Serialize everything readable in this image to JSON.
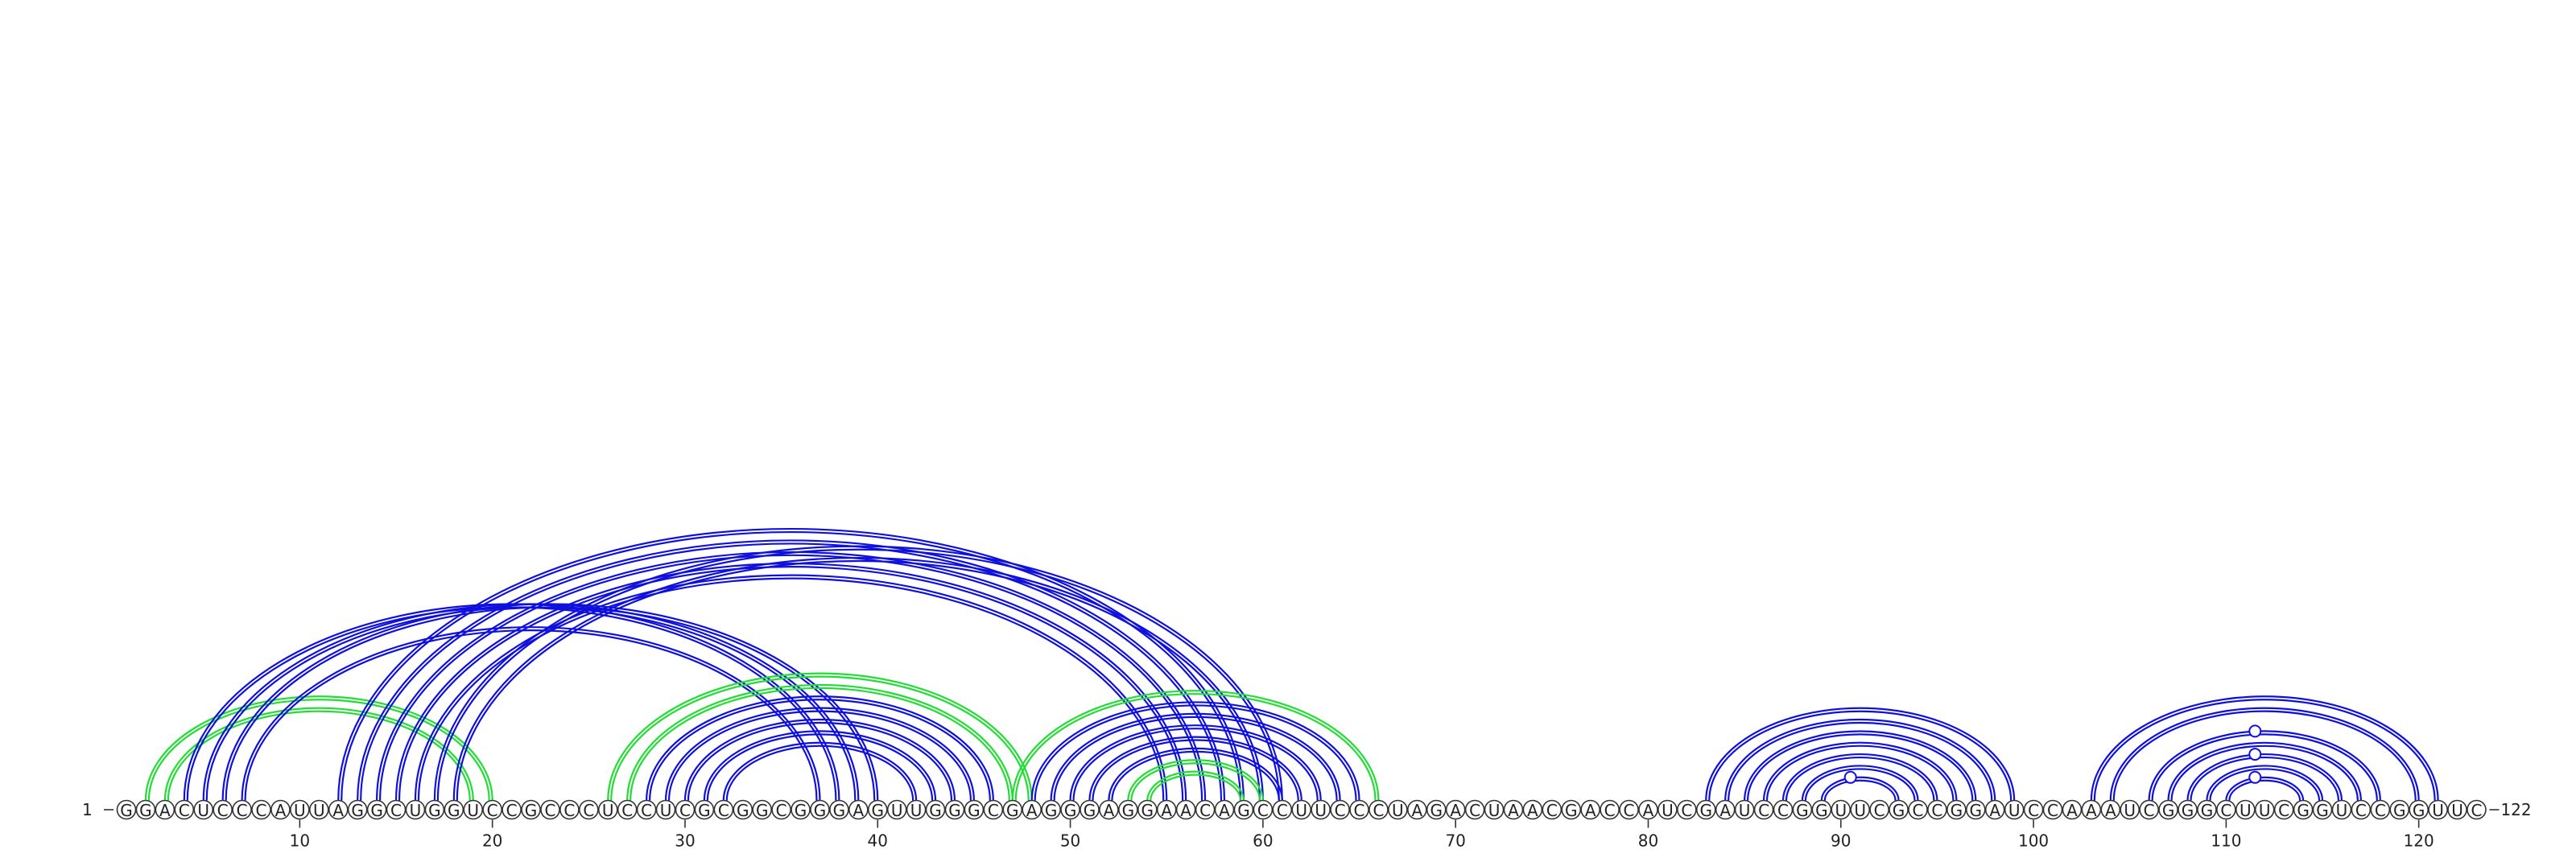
{
  "chart_data": {
    "type": "arc-diagram",
    "sequence": "GGACUCCCAUUAGGCUGGUCCGCCCUCCUCGCGGCGGGAGUUGGGCGAGGGAGGAACAGCCUUCCCUAGACUAACGACCAUCGAUCCGGUUCGCCGGAUCCAAAUCGGGCUUCGGUCCGGUUC",
    "length": 122,
    "start_label": "1",
    "end_label": "122",
    "ticks": [
      10,
      20,
      30,
      40,
      50,
      60,
      70,
      80,
      90,
      100,
      110,
      120
    ],
    "colors": {
      "blue": "#1010dd",
      "green": "#22dd33"
    },
    "arcs": [
      {
        "i": 2,
        "j": 20,
        "color": "green"
      },
      {
        "i": 3,
        "j": 19,
        "color": "green"
      },
      {
        "i": 4,
        "j": 38,
        "color": "blue"
      },
      {
        "i": 5,
        "j": 39,
        "color": "blue"
      },
      {
        "i": 6,
        "j": 40,
        "color": "blue"
      },
      {
        "i": 7,
        "j": 37,
        "color": "blue"
      },
      {
        "i": 12,
        "j": 59,
        "color": "blue"
      },
      {
        "i": 13,
        "j": 58,
        "color": "blue"
      },
      {
        "i": 14,
        "j": 57,
        "color": "blue"
      },
      {
        "i": 15,
        "j": 56,
        "color": "blue"
      },
      {
        "i": 16,
        "j": 55,
        "color": "blue"
      },
      {
        "i": 17,
        "j": 61,
        "color": "blue"
      },
      {
        "i": 18,
        "j": 60,
        "color": "blue"
      },
      {
        "i": 26,
        "j": 48,
        "color": "green"
      },
      {
        "i": 27,
        "j": 47,
        "color": "green"
      },
      {
        "i": 28,
        "j": 46,
        "color": "blue"
      },
      {
        "i": 29,
        "j": 45,
        "color": "blue"
      },
      {
        "i": 30,
        "j": 44,
        "color": "blue"
      },
      {
        "i": 31,
        "j": 43,
        "color": "blue"
      },
      {
        "i": 32,
        "j": 42,
        "color": "blue"
      },
      {
        "i": 47,
        "j": 66,
        "color": "green"
      },
      {
        "i": 48,
        "j": 65,
        "color": "blue"
      },
      {
        "i": 49,
        "j": 64,
        "color": "blue"
      },
      {
        "i": 50,
        "j": 63,
        "color": "blue"
      },
      {
        "i": 51,
        "j": 62,
        "color": "blue"
      },
      {
        "i": 52,
        "j": 61,
        "color": "blue"
      },
      {
        "i": 53,
        "j": 60,
        "color": "green"
      },
      {
        "i": 54,
        "j": 59,
        "color": "green"
      },
      {
        "i": 83,
        "j": 99,
        "color": "blue"
      },
      {
        "i": 84,
        "j": 98,
        "color": "blue"
      },
      {
        "i": 85,
        "j": 97,
        "color": "blue"
      },
      {
        "i": 86,
        "j": 96,
        "color": "blue"
      },
      {
        "i": 87,
        "j": 95,
        "color": "blue"
      },
      {
        "i": 88,
        "j": 94,
        "color": "blue"
      },
      {
        "i": 89,
        "j": 93,
        "color": "blue"
      },
      {
        "i": 103,
        "j": 121,
        "color": "blue"
      },
      {
        "i": 104,
        "j": 120,
        "color": "blue"
      },
      {
        "i": 106,
        "j": 118,
        "color": "blue"
      },
      {
        "i": 107,
        "j": 117,
        "color": "blue"
      },
      {
        "i": 108,
        "j": 116,
        "color": "blue"
      },
      {
        "i": 109,
        "j": 115,
        "color": "blue"
      },
      {
        "i": 110,
        "j": 114,
        "color": "blue"
      }
    ],
    "markers": [
      {
        "pos": 90.5,
        "arc_i": 89,
        "arc_j": 93
      },
      {
        "pos": 111.5,
        "arc_i": 106,
        "arc_j": 118
      },
      {
        "pos": 111.5,
        "arc_i": 108,
        "arc_j": 116
      },
      {
        "pos": 111.5,
        "arc_i": 110,
        "arc_j": 114
      }
    ]
  }
}
